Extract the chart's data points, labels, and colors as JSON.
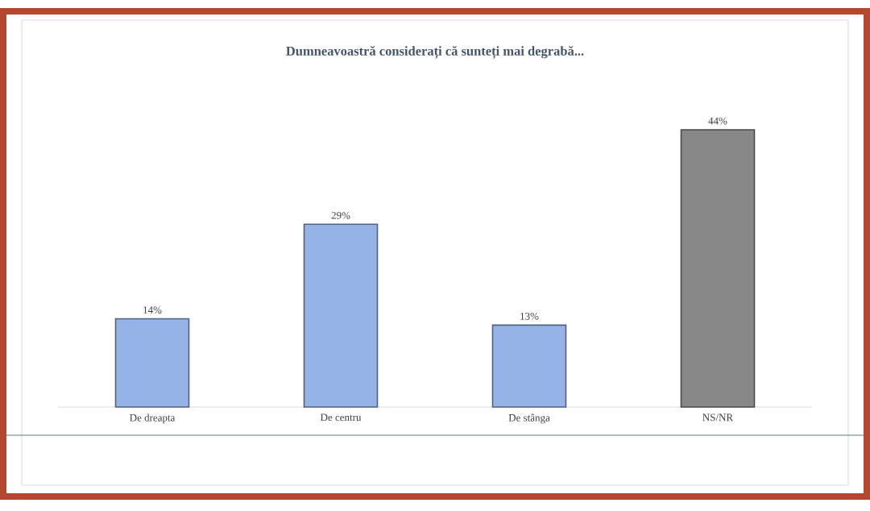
{
  "chart_data": {
    "type": "bar",
    "title": "Dumneavoastră considerați că sunteți mai degrabă...",
    "categories": [
      "De dreapta",
      "De centru",
      "De stânga",
      "NS/NR"
    ],
    "values": [
      14,
      29,
      13,
      44
    ],
    "colors": [
      "#95b3e6",
      "#95b3e6",
      "#95b3e6",
      "#878787"
    ],
    "value_labels": [
      "14%",
      "29%",
      "13%",
      "44%"
    ]
  }
}
